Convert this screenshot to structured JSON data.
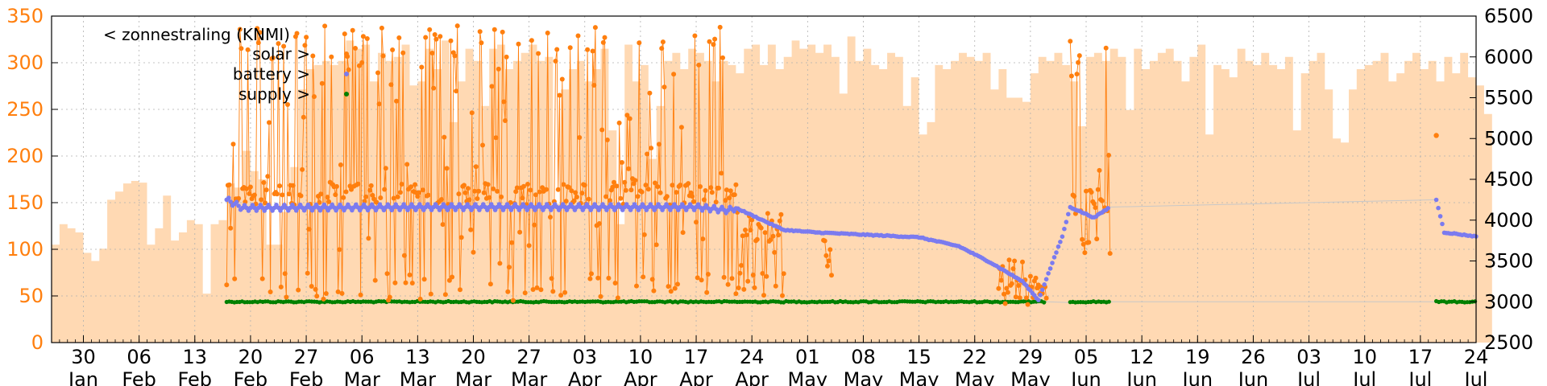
{
  "chart_data": {
    "type": "line",
    "x_axis": {
      "type": "date",
      "range": [
        "2023-01-26",
        "2023-07-24"
      ],
      "tick_dates": [
        "2023-01-30",
        "2023-02-06",
        "2023-02-13",
        "2023-02-20",
        "2023-02-27",
        "2023-03-06",
        "2023-03-13",
        "2023-03-20",
        "2023-03-27",
        "2023-04-03",
        "2023-04-10",
        "2023-04-17",
        "2023-04-24",
        "2023-05-01",
        "2023-05-08",
        "2023-05-15",
        "2023-05-22",
        "2023-05-29",
        "2023-06-05",
        "2023-06-12",
        "2023-06-19",
        "2023-06-26",
        "2023-07-03",
        "2023-07-10",
        "2023-07-17",
        "2023-07-24"
      ],
      "tick_labels": [
        {
          "day": "30",
          "month": "Jan"
        },
        {
          "day": "06",
          "month": "Feb"
        },
        {
          "day": "13",
          "month": "Feb"
        },
        {
          "day": "20",
          "month": "Feb"
        },
        {
          "day": "27",
          "month": "Feb"
        },
        {
          "day": "06",
          "month": "Mar"
        },
        {
          "day": "13",
          "month": "Mar"
        },
        {
          "day": "20",
          "month": "Mar"
        },
        {
          "day": "27",
          "month": "Mar"
        },
        {
          "day": "03",
          "month": "Apr"
        },
        {
          "day": "10",
          "month": "Apr"
        },
        {
          "day": "17",
          "month": "Apr"
        },
        {
          "day": "24",
          "month": "Apr"
        },
        {
          "day": "01",
          "month": "May"
        },
        {
          "day": "08",
          "month": "May"
        },
        {
          "day": "15",
          "month": "May"
        },
        {
          "day": "22",
          "month": "May"
        },
        {
          "day": "29",
          "month": "May"
        },
        {
          "day": "05",
          "month": "Jun"
        },
        {
          "day": "12",
          "month": "Jun"
        },
        {
          "day": "19",
          "month": "Jun"
        },
        {
          "day": "26",
          "month": "Jun"
        },
        {
          "day": "03",
          "month": "Jul"
        },
        {
          "day": "10",
          "month": "Jul"
        },
        {
          "day": "17",
          "month": "Jul"
        },
        {
          "day": "24",
          "month": "Jul"
        }
      ]
    },
    "y_left": {
      "range": [
        0,
        350
      ],
      "ticks": [
        "0",
        "50",
        "100",
        "150",
        "200",
        "250",
        "300",
        "350"
      ],
      "color": "#ff7f0e"
    },
    "y_right": {
      "range": [
        2500,
        6500
      ],
      "ticks": [
        "2500",
        "3000",
        "3500",
        "4000",
        "4500",
        "5000",
        "5500",
        "6000",
        "6500"
      ],
      "color": "#000000"
    },
    "grid": true,
    "legend": {
      "placement": "top-left",
      "entries": [
        {
          "label": "< zonnestraling (KNMI)",
          "color": "#ffd9b3",
          "marker": "area"
        },
        {
          "label": "solar >",
          "color": "#ff7f0e",
          "marker": "point"
        },
        {
          "label": "battery >",
          "color": "#7b7bef",
          "marker": "point"
        },
        {
          "label": "supply >",
          "color": "#008000",
          "marker": "point"
        }
      ]
    },
    "series": [
      {
        "name": "< zonnestraling (KNMI)",
        "axis": "right",
        "kind": "area-steps",
        "color": "#ffd9b3",
        "start": "2023-01-26",
        "daily": [
          3700,
          3950,
          3900,
          3850,
          3600,
          3500,
          3650,
          4250,
          4350,
          4450,
          4480,
          4460,
          3700,
          3900,
          4300,
          3750,
          3850,
          4000,
          3950,
          3100,
          3950,
          4000,
          4450,
          4400,
          4850,
          4600,
          4500,
          3700,
          3700,
          4100,
          4650,
          5600,
          5850,
          5900,
          5950,
          5900,
          5950,
          6200,
          6100,
          6150,
          5700,
          6050,
          5950,
          6000,
          6150,
          5650,
          5700,
          6100,
          5850,
          6200,
          5200,
          5700,
          6100,
          5950,
          5400,
          6100,
          6150,
          5850,
          5950,
          6050,
          6150,
          5950,
          6000,
          4200,
          5600,
          5850,
          5950,
          5700,
          5850,
          6100,
          5100,
          3950,
          6150,
          5700,
          5900,
          4750,
          5400,
          5950,
          6050,
          5850,
          6100,
          6050,
          5950,
          5700,
          5950,
          5900,
          5800,
          6100,
          6150,
          5900,
          6150,
          5850,
          6000,
          6200,
          6100,
          6150,
          6050,
          6150,
          6000,
          5550,
          6250,
          5950,
          6100,
          5900,
          5850,
          6050,
          6000,
          5400,
          5750,
          5050,
          5200,
          5900,
          5850,
          5950,
          6050,
          6000,
          5950,
          6050,
          5600,
          5850,
          5500,
          5500,
          5450,
          5800,
          6000,
          5950,
          6050,
          5900,
          5700,
          5150,
          6000,
          6050,
          5950,
          6100,
          6000,
          5350,
          6100,
          5850,
          5950,
          6050,
          6100,
          5950,
          5700,
          6000,
          6150,
          5050,
          5900,
          5850,
          5750,
          6100,
          5950,
          5900,
          6050,
          5900,
          5850,
          6000,
          5100,
          5800,
          5950,
          6050,
          5600,
          5000,
          4950,
          5600,
          5850,
          5900,
          5950,
          6050,
          5700,
          5800,
          5950,
          6050,
          5850,
          5950,
          5700,
          6000,
          5800,
          6050,
          5750,
          5650,
          5300
        ]
      },
      {
        "name": "solar >",
        "axis": "left",
        "kind": "points-lines",
        "color": "#ff7f0e",
        "segments": [
          {
            "from": "2023-02-17",
            "to": "2023-04-22",
            "low": 45,
            "high": 340,
            "base": 160
          },
          {
            "from": "2023-04-22",
            "to": "2023-04-28",
            "low": 50,
            "high": 150,
            "base": 120
          },
          {
            "from": "2023-05-03",
            "to": "2023-05-04",
            "low": 80,
            "high": 110,
            "base": 95
          },
          {
            "from": "2023-05-25",
            "to": "2023-05-31",
            "low": 40,
            "high": 95,
            "base": 60
          },
          {
            "from": "2023-06-03",
            "to": "2023-06-08",
            "low": 85,
            "high": 325,
            "base": 150
          }
        ],
        "isolated": [
          {
            "date": "2023-07-19",
            "value": 222
          }
        ]
      },
      {
        "name": "battery >",
        "axis": "right",
        "kind": "points",
        "color": "#7b7bef",
        "keypoints": [
          [
            "2023-02-17",
            4250
          ],
          [
            "2023-02-19",
            4150
          ],
          [
            "2023-03-15",
            4160
          ],
          [
            "2023-04-17",
            4160
          ],
          [
            "2023-04-21",
            4120
          ],
          [
            "2023-04-22",
            4150
          ],
          [
            "2023-04-28",
            3880
          ],
          [
            "2023-05-02",
            3850
          ],
          [
            "2023-05-15",
            3790
          ],
          [
            "2023-05-20",
            3680
          ],
          [
            "2023-05-24",
            3480
          ],
          [
            "2023-05-28",
            3250
          ],
          [
            "2023-05-30",
            3020
          ],
          [
            "2023-06-02",
            3800
          ],
          [
            "2023-06-03",
            4160
          ],
          [
            "2023-06-06",
            4030
          ],
          [
            "2023-06-08",
            4160
          ],
          [
            "2023-07-19",
            4250
          ],
          [
            "2023-07-20",
            3850
          ],
          [
            "2023-07-24",
            3800
          ]
        ]
      },
      {
        "name": "supply >",
        "axis": "right",
        "kind": "points",
        "color": "#008000",
        "value": 3000,
        "ranges": [
          [
            "2023-02-17",
            "2023-05-31"
          ],
          [
            "2023-06-03",
            "2023-06-08"
          ],
          [
            "2023-07-19",
            "2023-07-24"
          ]
        ]
      }
    ]
  }
}
